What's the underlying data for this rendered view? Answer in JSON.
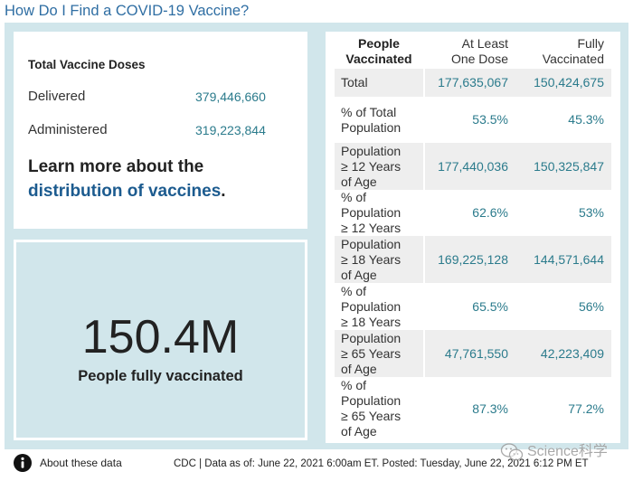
{
  "title": "How Do I Find a COVID-19 Vaccine?",
  "doses": {
    "heading": "Total Vaccine Doses",
    "rows": [
      {
        "label": "Delivered",
        "value": "379,446,660"
      },
      {
        "label": "Administered",
        "value": "319,223,844"
      }
    ],
    "learn_more_prefix": "Learn more about the",
    "learn_more_link": "distribution of vaccines",
    "learn_more_suffix": "."
  },
  "headline": {
    "value": "150.4M",
    "label": "People fully vaccinated"
  },
  "table": {
    "headers": [
      [
        "People",
        "Vaccinated"
      ],
      [
        "At Least",
        "One Dose"
      ],
      [
        "Fully",
        "Vaccinated"
      ]
    ],
    "rows": [
      {
        "label": [
          "Total"
        ],
        "at_least_one_dose": "177,635,067",
        "fully_vaccinated": "150,424,675"
      },
      {
        "label": [
          "% of Total",
          "Population"
        ],
        "at_least_one_dose": "53.5%",
        "fully_vaccinated": "45.3%"
      },
      {
        "label": [
          "Population",
          "≥ 12 Years",
          "of Age"
        ],
        "at_least_one_dose": "177,440,036",
        "fully_vaccinated": "150,325,847"
      },
      {
        "label": [
          "% of",
          "Population",
          "≥ 12 Years"
        ],
        "at_least_one_dose": "62.6%",
        "fully_vaccinated": "53%"
      },
      {
        "label": [
          "Population",
          "≥ 18 Years",
          "of Age"
        ],
        "at_least_one_dose": "169,225,128",
        "fully_vaccinated": "144,571,644"
      },
      {
        "label": [
          "% of",
          "Population",
          "≥ 18 Years"
        ],
        "at_least_one_dose": "65.5%",
        "fully_vaccinated": "56%"
      },
      {
        "label": [
          "Population",
          "≥ 65 Years",
          "of Age"
        ],
        "at_least_one_dose": "47,761,550",
        "fully_vaccinated": "42,223,409"
      },
      {
        "label": [
          "% of",
          "Population",
          "≥ 65 Years",
          "of Age"
        ],
        "at_least_one_dose": "87.3%",
        "fully_vaccinated": "77.2%"
      }
    ]
  },
  "footer": {
    "about_label": "About these data",
    "source_text": "CDC | Data as of: June 22, 2021 6:00am ET. Posted: Tuesday, June 22, 2021 6:12 PM ET"
  },
  "watermark": "Science科学",
  "icons": {
    "info": "info-icon",
    "watermark_logo": "wechat-icon"
  },
  "colors": {
    "title": "#2f6ea3",
    "value": "#2b7b8c",
    "link": "#1c5b8f",
    "panel": "#d1e6eb",
    "row-alt": "#eeeeee"
  }
}
